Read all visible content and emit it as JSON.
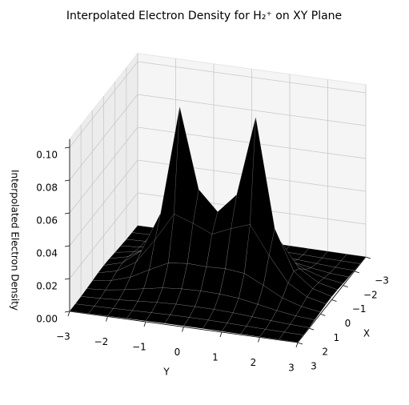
{
  "chart_data": {
    "type": "surface",
    "title": "Interpolated Electron Density for H₂⁺  on XY Plane",
    "xlabel": "X",
    "ylabel": "Y",
    "zlabel": "Interpolated Electron Density",
    "colormap": "viridis",
    "x": [
      -3,
      -2.5,
      -2,
      -1.5,
      -1,
      -0.5,
      0,
      0.5,
      1,
      1.5,
      2,
      2.5,
      3
    ],
    "y": [
      -3,
      -2.5,
      -2,
      -1.5,
      -1,
      -0.5,
      0,
      0.5,
      1,
      1.5,
      2,
      2.5,
      3
    ],
    "z": [
      [
        0.0001,
        0.0002,
        0.0003,
        0.0004,
        0.0005,
        0.0006,
        0.0006,
        0.0006,
        0.0005,
        0.0004,
        0.0003,
        0.0002,
        0.0001
      ],
      [
        0.0002,
        0.0004,
        0.0006,
        0.0009,
        0.0012,
        0.0014,
        0.0015,
        0.0014,
        0.0012,
        0.0009,
        0.0006,
        0.0004,
        0.0002
      ],
      [
        0.0004,
        0.0008,
        0.0015,
        0.0023,
        0.0031,
        0.0036,
        0.0037,
        0.0036,
        0.0031,
        0.0023,
        0.0015,
        0.0008,
        0.0004
      ],
      [
        0.0008,
        0.0016,
        0.0033,
        0.0055,
        0.0076,
        0.0086,
        0.0089,
        0.0086,
        0.0076,
        0.0055,
        0.0033,
        0.0016,
        0.0008
      ],
      [
        0.0012,
        0.003,
        0.0066,
        0.0127,
        0.0184,
        0.0197,
        0.0193,
        0.0197,
        0.0184,
        0.0127,
        0.0066,
        0.003,
        0.0012
      ],
      [
        0.0017,
        0.0045,
        0.0114,
        0.0266,
        0.0439,
        0.0398,
        0.0348,
        0.0398,
        0.0439,
        0.0266,
        0.0114,
        0.0045,
        0.0017
      ],
      [
        0.0019,
        0.0052,
        0.0142,
        0.0386,
        0.105,
        0.0561,
        0.0441,
        0.0561,
        0.105,
        0.0386,
        0.0142,
        0.0052,
        0.0019
      ],
      [
        0.0017,
        0.0045,
        0.0114,
        0.0266,
        0.0439,
        0.0398,
        0.0348,
        0.0398,
        0.0439,
        0.0266,
        0.0114,
        0.0045,
        0.0017
      ],
      [
        0.0012,
        0.003,
        0.0066,
        0.0127,
        0.0184,
        0.0197,
        0.0193,
        0.0197,
        0.0184,
        0.0127,
        0.0066,
        0.003,
        0.0012
      ],
      [
        0.0008,
        0.0016,
        0.0033,
        0.0055,
        0.0076,
        0.0086,
        0.0089,
        0.0086,
        0.0076,
        0.0055,
        0.0033,
        0.0016,
        0.0008
      ],
      [
        0.0004,
        0.0008,
        0.0015,
        0.0023,
        0.0031,
        0.0036,
        0.0037,
        0.0036,
        0.0031,
        0.0023,
        0.0015,
        0.0008,
        0.0004
      ],
      [
        0.0002,
        0.0004,
        0.0006,
        0.0009,
        0.0012,
        0.0014,
        0.0015,
        0.0014,
        0.0012,
        0.0009,
        0.0006,
        0.0004,
        0.0002
      ],
      [
        0.0001,
        0.0002,
        0.0003,
        0.0004,
        0.0005,
        0.0006,
        0.0006,
        0.0006,
        0.0005,
        0.0004,
        0.0003,
        0.0002,
        0.0001
      ]
    ],
    "xlim": [
      -3,
      3
    ],
    "ylim": [
      -3,
      3
    ],
    "zlim": [
      0,
      0.105
    ],
    "xticks": [
      {
        "value": -3,
        "label": "−3"
      },
      {
        "value": -2,
        "label": "−2"
      },
      {
        "value": -1,
        "label": "−1"
      },
      0,
      1,
      2,
      3
    ],
    "yticks": [
      {
        "value": -3,
        "label": "−3"
      },
      {
        "value": -2,
        "label": "−2"
      },
      {
        "value": -1,
        "label": "−1"
      },
      0,
      1,
      2,
      3
    ],
    "zticks": [
      {
        "value": 0,
        "label": "0.00"
      },
      {
        "value": 0.02,
        "label": "0.02"
      },
      {
        "value": 0.04,
        "label": "0.04"
      },
      {
        "value": 0.06,
        "label": "0.06"
      },
      {
        "value": 0.08,
        "label": "0.08"
      },
      {
        "value": 0.1,
        "label": "0.10"
      }
    ],
    "grid": true
  }
}
